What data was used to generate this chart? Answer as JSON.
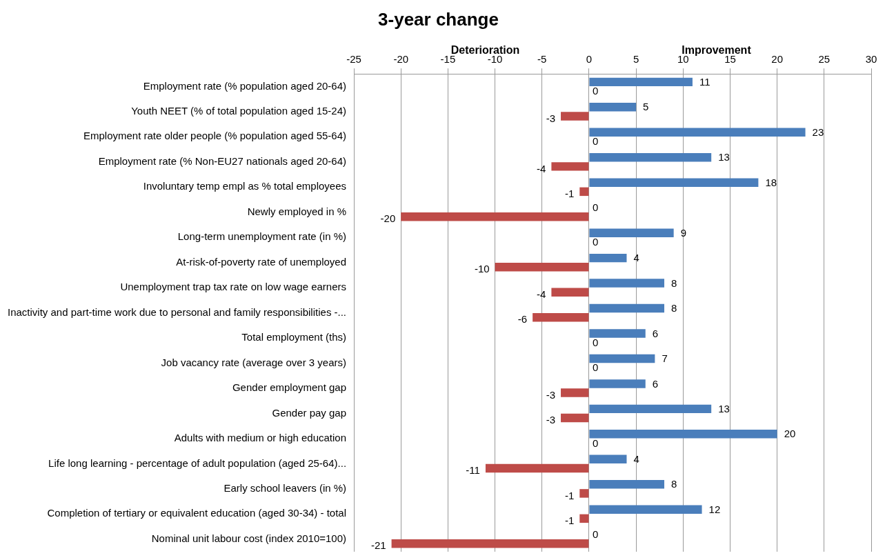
{
  "chart_data": {
    "type": "bar",
    "orientation": "horizontal",
    "title": "3-year change",
    "annotations": [
      "Deterioration",
      "Improvement"
    ],
    "categories": [
      "Employment rate (% population aged 20-64)",
      "Youth NEET (% of total population aged 15-24)",
      "Employment rate older people (% population aged 55-64)",
      "Employment rate (% Non-EU27 nationals aged 20-64)",
      "Involuntary temp empl as % total employees",
      "Newly employed in %",
      "Long-term unemployment rate (in %)",
      "At-risk-of-poverty rate of unemployed",
      "Unemployment trap tax rate on low wage earners",
      "Inactivity and part-time work due to personal and family responsibilities -...",
      "Total employment (ths)",
      "Job vacancy rate (average over 3 years)",
      "Gender employment gap",
      "Gender pay gap",
      "Adults with medium or high education",
      "Life long learning - percentage of adult population (aged 25-64)...",
      "Early school leavers (in %)",
      "Completion of tertiary or equivalent education (aged 30-34) - total",
      "Nominal unit labour cost (index 2010=100)"
    ],
    "series": [
      {
        "color": "#4a7ebb",
        "values": [
          11,
          5,
          23,
          13,
          18,
          0,
          9,
          4,
          8,
          8,
          6,
          7,
          6,
          13,
          20,
          4,
          8,
          12,
          0
        ]
      },
      {
        "color": "#be4b48",
        "values": [
          0,
          -3,
          0,
          -4,
          -1,
          -20,
          0,
          -10,
          -4,
          -6,
          0,
          0,
          -3,
          -3,
          0,
          -11,
          -1,
          -1,
          -21
        ]
      }
    ],
    "xlim": [
      -25,
      30
    ],
    "xticks": [
      -25,
      -20,
      -15,
      -10,
      -5,
      0,
      5,
      10,
      15,
      20,
      25,
      30
    ],
    "grid": "x",
    "data_labels": true,
    "legend": false
  }
}
